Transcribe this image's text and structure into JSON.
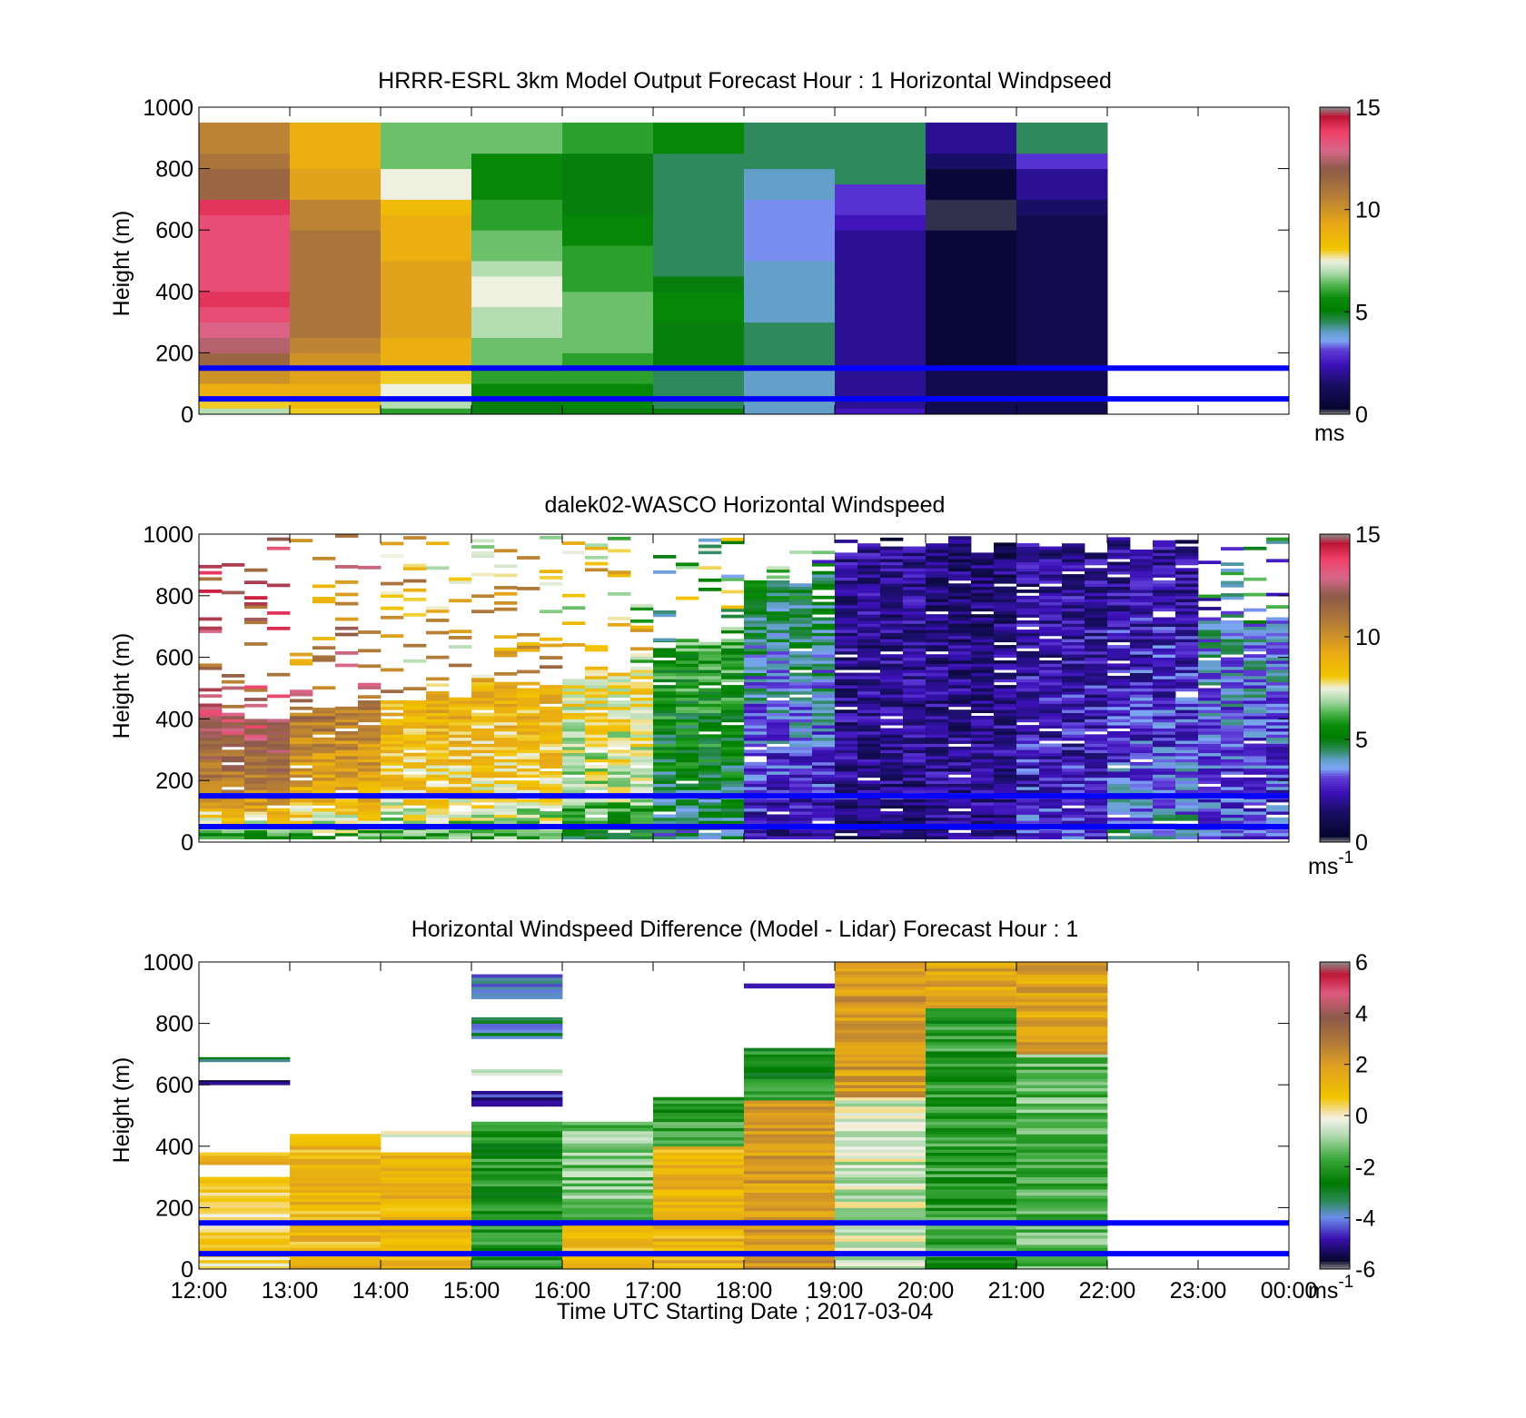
{
  "figure": {
    "xlabel": "Time UTC  Starting Date ; 2017-03-04",
    "x_ticks": [
      "12:00",
      "13:00",
      "14:00",
      "15:00",
      "16:00",
      "17:00",
      "18:00",
      "19:00",
      "20:00",
      "21:00",
      "22:00",
      "23:00",
      "00:00"
    ],
    "height_ticks": [
      "0",
      "200",
      "400",
      "600",
      "800",
      "1000"
    ],
    "reference_line_color": "#0000ff"
  },
  "chart_data": [
    {
      "type": "heatmap",
      "title": "HRRR-ESRL 3km Model Output   Forecast Hour : 1 Horizontal Windpseed",
      "ylabel": "Height (m)",
      "ylim": [
        0,
        1000
      ],
      "xlim": [
        "12:00",
        "00:00"
      ],
      "colorbar": {
        "range": [
          0,
          15
        ],
        "ticks": [
          "0",
          "5",
          "10",
          "15"
        ],
        "unit": "ms",
        "unit_sup": ""
      },
      "reference_lines_m": [
        50,
        150
      ],
      "x_bins": [
        "12:00",
        "13:00",
        "14:00",
        "15:00",
        "16:00",
        "17:00",
        "18:00",
        "19:00",
        "20:00",
        "21:00"
      ],
      "height_levels_m": [
        20,
        60,
        100,
        150,
        200,
        250,
        300,
        350,
        400,
        450,
        500,
        550,
        600,
        650,
        700,
        750,
        800,
        850,
        900,
        950,
        1000
      ],
      "values": [
        [
          7,
          8,
          9,
          10,
          11.5,
          12.5,
          13,
          13.5,
          14,
          13.5,
          13.5,
          13.5,
          13.5,
          13.5,
          14,
          11.5,
          11.5,
          11,
          10.5,
          10.5
        ],
        [
          8,
          8.5,
          9,
          9.5,
          10,
          10.5,
          11,
          11,
          11,
          11,
          11,
          11,
          11,
          10.5,
          10.5,
          9.5,
          9.5,
          9,
          9,
          9
        ],
        [
          6,
          7,
          7.5,
          8,
          9,
          9,
          9.5,
          9.5,
          9.5,
          9.5,
          9.5,
          9,
          9,
          9,
          8.5,
          7.5,
          7.5,
          6.5,
          6.5,
          6.5
        ],
        [
          5,
          5,
          5.5,
          6,
          6.5,
          6.5,
          7,
          7,
          7.5,
          7.5,
          7,
          6.5,
          6.5,
          6,
          6,
          5.5,
          5.5,
          5.5,
          6.5,
          6.5
        ],
        [
          5,
          5.5,
          5.5,
          6,
          6,
          6.5,
          6.5,
          6.5,
          6.5,
          6,
          6,
          6,
          5.5,
          5.5,
          5,
          5,
          5,
          5,
          6,
          6
        ],
        [
          5,
          4.5,
          4.5,
          4.5,
          5,
          5,
          5,
          5.5,
          5.5,
          5,
          4.5,
          4.5,
          4.5,
          4.5,
          4.5,
          4.5,
          4.5,
          4.5,
          5.5,
          5.5
        ],
        [
          4,
          4,
          4,
          4,
          4.5,
          4.5,
          4.5,
          4,
          4,
          4,
          4,
          3.5,
          3.5,
          3.5,
          3.5,
          4,
          4,
          4.5,
          4.5,
          4.5
        ],
        [
          2.5,
          2,
          2,
          2,
          2,
          2,
          2,
          2,
          2,
          2,
          2,
          2,
          2,
          2.5,
          3,
          3,
          4.5,
          4.5,
          4.5,
          4.5
        ],
        [
          1,
          1,
          1,
          1,
          0.5,
          0.5,
          0.5,
          0.5,
          0.5,
          0.5,
          0.5,
          0.5,
          0.5,
          0.2,
          0.2,
          0.5,
          0.5,
          1.5,
          2,
          2
        ],
        [
          1,
          1,
          1,
          1,
          1,
          1,
          1,
          1,
          1,
          1,
          1,
          1,
          1,
          1,
          1.5,
          2,
          2,
          3,
          4.5,
          4.5
        ]
      ]
    },
    {
      "type": "heatmap",
      "title": "dalek02-WASCO  Horizontal Windspeed",
      "ylabel": "Height (m)",
      "ylim": [
        0,
        1000
      ],
      "xlim": [
        "12:00",
        "00:00"
      ],
      "colorbar": {
        "range": [
          0,
          15
        ],
        "ticks": [
          "0",
          "5",
          "10",
          "15"
        ],
        "unit": "ms",
        "unit_sup": "-1"
      },
      "reference_lines_m": [
        50,
        150
      ],
      "x_bins_per_hour": 4,
      "series": [
        {
          "hour": "12:00",
          "speed_near_surface": 5,
          "speed_mid": 10,
          "speed_top": 13,
          "data_top_m": 440
        },
        {
          "hour": "13:00",
          "speed_near_surface": 6,
          "speed_mid": 9,
          "speed_top": 11,
          "data_top_m": 460
        },
        {
          "hour": "14:00",
          "speed_near_surface": 6,
          "speed_mid": 8,
          "speed_top": 9,
          "data_top_m": 490
        },
        {
          "hour": "15:00",
          "speed_near_surface": 6,
          "speed_mid": 8,
          "speed_top": 9,
          "data_top_m": 560
        },
        {
          "hour": "16:00",
          "speed_near_surface": 5,
          "speed_mid": 7,
          "speed_top": 8,
          "data_top_m": 580
        },
        {
          "hour": "17:00",
          "speed_near_surface": 4,
          "speed_mid": 5,
          "speed_top": 6,
          "data_top_m": 680
        },
        {
          "hour": "18:00",
          "speed_near_surface": 2,
          "speed_mid": 3,
          "speed_top": 5,
          "data_top_m": 880
        },
        {
          "hour": "19:00",
          "speed_near_surface": 1.5,
          "speed_mid": 2,
          "speed_top": 2,
          "data_top_m": 990
        },
        {
          "hour": "20:00",
          "speed_near_surface": 2,
          "speed_mid": 2,
          "speed_top": 1.5,
          "data_top_m": 990
        },
        {
          "hour": "21:00",
          "speed_near_surface": 3,
          "speed_mid": 2.5,
          "speed_top": 2,
          "data_top_m": 990
        },
        {
          "hour": "22:00",
          "speed_near_surface": 4,
          "speed_mid": 3,
          "speed_top": 2,
          "data_top_m": 990
        },
        {
          "hour": "23:00",
          "speed_near_surface": 3,
          "speed_mid": 3,
          "speed_top": 4,
          "data_top_m": 760
        }
      ]
    },
    {
      "type": "heatmap",
      "title": "Horizontal Windspeed Difference (Model - Lidar) Forecast Hour : 1",
      "ylabel": "Height (m)",
      "xlabel": "Time UTC  Starting Date ; 2017-03-04",
      "ylim": [
        0,
        1000
      ],
      "xlim": [
        "12:00",
        "00:00"
      ],
      "colorbar": {
        "range": [
          -6,
          6
        ],
        "ticks": [
          "-6",
          "-4",
          "-2",
          "0",
          "2",
          "4",
          "6"
        ],
        "unit": "ms",
        "unit_sup": "-1"
      },
      "reference_lines_m": [
        50,
        150
      ],
      "segments": [
        {
          "hour": "12:00",
          "from_m": 0,
          "to_m": 300,
          "value": 0.3
        },
        {
          "hour": "12:00",
          "from_m": 340,
          "to_m": 380,
          "value": 1.2
        },
        {
          "hour": "12:00",
          "from_m": 600,
          "to_m": 615,
          "value": -5.3
        },
        {
          "hour": "12:00",
          "from_m": 675,
          "to_m": 690,
          "value": -2.8
        },
        {
          "hour": "13:00",
          "from_m": 0,
          "to_m": 440,
          "value": 1.2
        },
        {
          "hour": "14:00",
          "from_m": 0,
          "to_m": 380,
          "value": 1.2
        },
        {
          "hour": "14:00",
          "from_m": 430,
          "to_m": 450,
          "value": -0.5
        },
        {
          "hour": "15:00",
          "from_m": 0,
          "to_m": 480,
          "value": -2.2
        },
        {
          "hour": "15:00",
          "from_m": 530,
          "to_m": 580,
          "value": -4.6
        },
        {
          "hour": "15:00",
          "from_m": 630,
          "to_m": 650,
          "value": 0
        },
        {
          "hour": "15:00",
          "from_m": 750,
          "to_m": 820,
          "value": -3.5
        },
        {
          "hour": "15:00",
          "from_m": 880,
          "to_m": 960,
          "value": -4.0
        },
        {
          "hour": "16:00",
          "from_m": 0,
          "to_m": 150,
          "value": 1.0
        },
        {
          "hour": "16:00",
          "from_m": 150,
          "to_m": 480,
          "value": -1.2
        },
        {
          "hour": "17:00",
          "from_m": 0,
          "to_m": 400,
          "value": 1.3
        },
        {
          "hour": "17:00",
          "from_m": 400,
          "to_m": 560,
          "value": -2.0
        },
        {
          "hour": "18:00",
          "from_m": 0,
          "to_m": 550,
          "value": 2.0
        },
        {
          "hour": "18:00",
          "from_m": 550,
          "to_m": 720,
          "value": -2.3
        },
        {
          "hour": "18:00",
          "from_m": 915,
          "to_m": 930,
          "value": -5.0
        },
        {
          "hour": "19:00",
          "from_m": 0,
          "to_m": 560,
          "value": -0.5
        },
        {
          "hour": "19:00",
          "from_m": 560,
          "to_m": 1000,
          "value": 2.0
        },
        {
          "hour": "20:00",
          "from_m": 0,
          "to_m": 850,
          "value": -2.0
        },
        {
          "hour": "20:00",
          "from_m": 850,
          "to_m": 1000,
          "value": 1.8
        },
        {
          "hour": "21:00",
          "from_m": 0,
          "to_m": 700,
          "value": -1.5
        },
        {
          "hour": "21:00",
          "from_m": 700,
          "to_m": 1000,
          "value": 1.8
        }
      ]
    }
  ]
}
